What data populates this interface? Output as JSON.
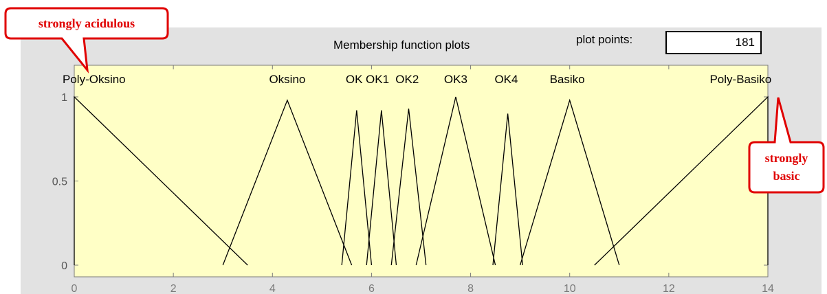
{
  "header": {
    "title": "Membership function plots",
    "plot_points_label": "plot points:",
    "plot_points_value": "181"
  },
  "callouts": {
    "left": "strongly acidulous",
    "right_line1": "strongly",
    "right_line2": "basic"
  },
  "colors": {
    "plot_background": "#ffffc6",
    "panel_background": "#e2e2e2",
    "line": "#000000",
    "callout": "#e00000"
  },
  "chart_data": {
    "type": "line",
    "title": "Membership function plots",
    "xlabel": "",
    "ylabel": "",
    "xlim": [
      0,
      14
    ],
    "ylim": [
      0,
      1
    ],
    "xticks": [
      0,
      2,
      4,
      6,
      8,
      10,
      12,
      14
    ],
    "yticks": [
      0,
      0.5,
      1
    ],
    "grid": false,
    "series": [
      {
        "name": "Poly-Oksino",
        "x": [
          0,
          0,
          3.5
        ],
        "y": [
          0,
          1,
          0
        ],
        "label_x": 0.4
      },
      {
        "name": "Oksino",
        "x": [
          3,
          4.3,
          5.6
        ],
        "y": [
          0,
          0.98,
          0
        ],
        "label_x": 4.3
      },
      {
        "name": "OK",
        "x": [
          5.4,
          5.7,
          6.0
        ],
        "y": [
          0,
          0.92,
          0
        ],
        "label_x": 5.65
      },
      {
        "name": "OK1",
        "x": [
          5.9,
          6.2,
          6.5
        ],
        "y": [
          0,
          0.92,
          0
        ],
        "label_x": 6.12
      },
      {
        "name": "OK2",
        "x": [
          6.4,
          6.75,
          7.1
        ],
        "y": [
          0,
          0.93,
          0
        ],
        "label_x": 6.72
      },
      {
        "name": "OK3",
        "x": [
          6.9,
          7.7,
          8.5
        ],
        "y": [
          0,
          1,
          0
        ],
        "label_x": 7.7
      },
      {
        "name": "OK4",
        "x": [
          8.45,
          8.75,
          9.05
        ],
        "y": [
          0,
          0.9,
          0
        ],
        "label_x": 8.72
      },
      {
        "name": "Basiko",
        "x": [
          9.0,
          10.0,
          11.0
        ],
        "y": [
          0,
          0.98,
          0
        ],
        "label_x": 9.95
      },
      {
        "name": "Poly-Basiko",
        "x": [
          10.5,
          14,
          14
        ],
        "y": [
          0,
          1,
          0
        ],
        "label_x": 13.45
      }
    ]
  }
}
